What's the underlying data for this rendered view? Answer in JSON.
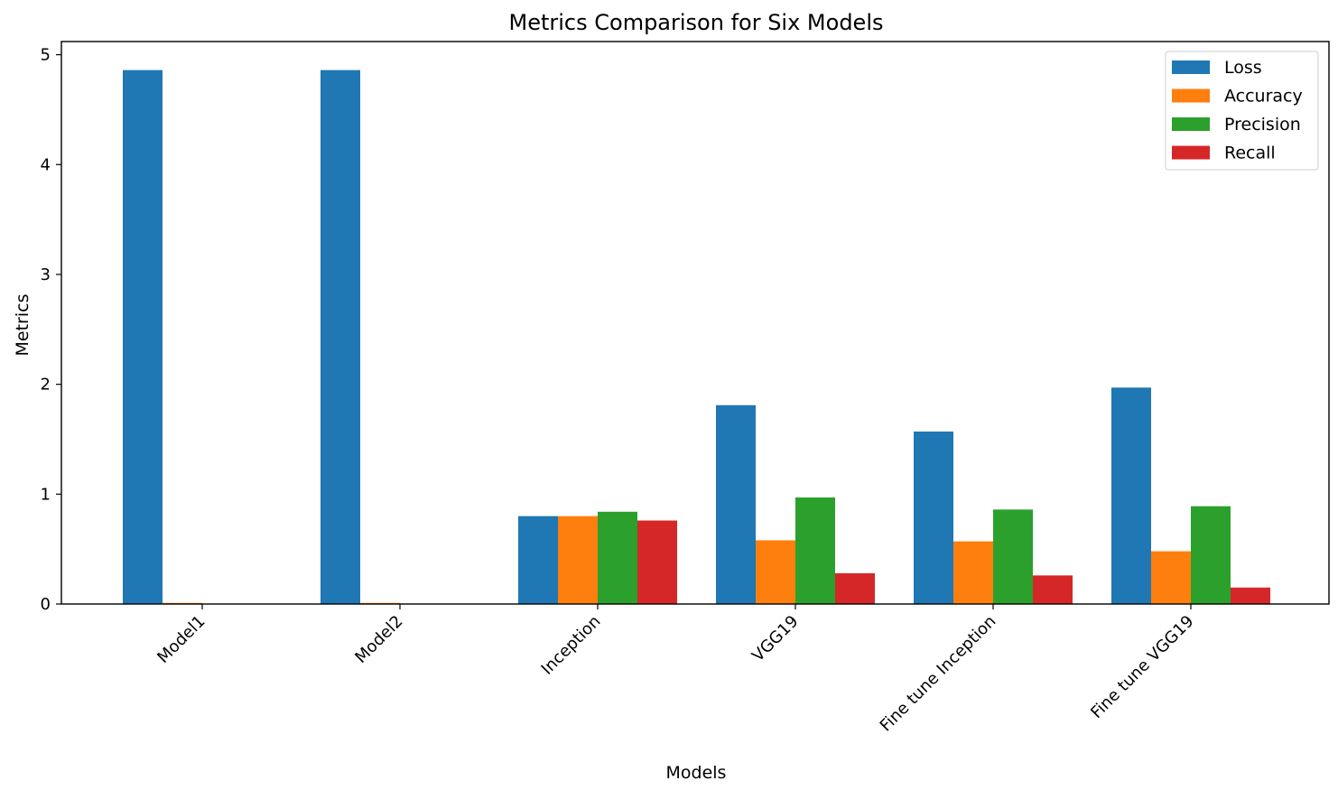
{
  "chart_data": {
    "type": "bar",
    "title": "Metrics Comparison for Six Models",
    "xlabel": "Models",
    "ylabel": "Metrics",
    "categories": [
      "Model1",
      "Model2",
      "Inception",
      "VGG19",
      "Fine tune Inception",
      "Fine tune VGG19"
    ],
    "series": [
      {
        "name": "Loss",
        "color": "#1f77b4",
        "values": [
          4.86,
          4.86,
          0.8,
          1.81,
          1.57,
          1.97
        ]
      },
      {
        "name": "Accuracy",
        "color": "#ff7f0e",
        "values": [
          0.01,
          0.01,
          0.8,
          0.58,
          0.57,
          0.48
        ]
      },
      {
        "name": "Precision",
        "color": "#2ca02c",
        "values": [
          0.0,
          0.0,
          0.84,
          0.97,
          0.86,
          0.89
        ]
      },
      {
        "name": "Recall",
        "color": "#d62728",
        "values": [
          0.0,
          0.0,
          0.76,
          0.28,
          0.26,
          0.15
        ]
      }
    ],
    "ylim": [
      0,
      5.12
    ],
    "yticks": [
      0,
      1,
      2,
      3,
      4,
      5
    ],
    "grid": false,
    "legend_position": "top-right"
  }
}
